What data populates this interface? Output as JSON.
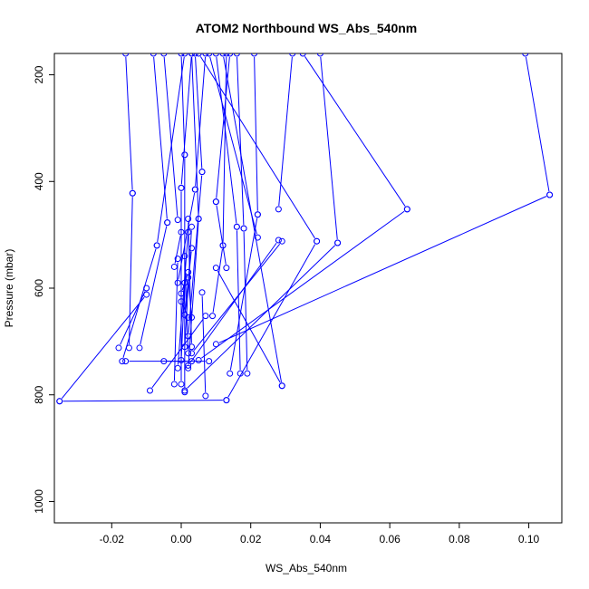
{
  "chart_data": {
    "type": "line",
    "title": "ATOM2 Northbound WS_Abs_540nm",
    "xlabel": "WS_Abs_540nm",
    "ylabel": "Pressure (mbar)",
    "xlim": [
      -0.0365,
      0.1095
    ],
    "ylim": [
      1040,
      160
    ],
    "y_inverted": true,
    "x_ticks": [
      -0.02,
      0.0,
      0.02,
      0.04,
      0.06,
      0.08,
      0.1
    ],
    "x_tick_labels": [
      "-0.02",
      "0.00",
      "0.02",
      "0.04",
      "0.06",
      "0.08",
      "0.10"
    ],
    "y_ticks": [
      200,
      400,
      600,
      800,
      1000
    ],
    "y_tick_labels": [
      "200",
      "400",
      "600",
      "800",
      "1000"
    ],
    "grid": false,
    "legend": "none",
    "series_color": "#0000ff",
    "marker": "open-circle",
    "series": [
      {
        "x": [
          0.106,
          0.099
        ],
        "y": [
          425,
          160
        ]
      },
      {
        "x": [
          0.065,
          0.035
        ],
        "y": [
          452,
          160
        ]
      },
      {
        "x": [
          0.045,
          0.04
        ],
        "y": [
          515,
          160
        ]
      },
      {
        "x": [
          0.039,
          0.005
        ],
        "y": [
          512,
          160
        ]
      },
      {
        "x": [
          0.028,
          0.032
        ],
        "y": [
          452,
          160
        ]
      },
      {
        "x": [
          0.029,
          0.012
        ],
        "y": [
          783,
          160
        ]
      },
      {
        "x": [
          0.022,
          0.021
        ],
        "y": [
          462,
          160
        ]
      },
      {
        "x": [
          0.022,
          0.008
        ],
        "y": [
          505,
          160
        ]
      },
      {
        "x": [
          0.016,
          0.01
        ],
        "y": [
          485,
          160
        ]
      },
      {
        "x": [
          0.018,
          0.016
        ],
        "y": [
          488,
          160
        ]
      },
      {
        "x": [
          0.01,
          0.014
        ],
        "y": [
          438,
          160
        ]
      },
      {
        "x": [
          0.012,
          0.013
        ],
        "y": [
          520,
          160
        ]
      },
      {
        "x": [
          0.006,
          0.004
        ],
        "y": [
          382,
          160
        ]
      },
      {
        "x": [
          0.005,
          0.003
        ],
        "y": [
          470,
          160
        ]
      },
      {
        "x": [
          -0.014,
          -0.016
        ],
        "y": [
          422,
          160
        ]
      },
      {
        "x": [
          -0.004,
          -0.008
        ],
        "y": [
          477,
          160
        ]
      },
      {
        "x": [
          -0.007,
          0.001
        ],
        "y": [
          520,
          160
        ]
      },
      {
        "x": [
          0.001,
          0.0
        ],
        "y": [
          350,
          160
        ]
      },
      {
        "x": [
          0.0,
          0.003
        ],
        "y": [
          412,
          160
        ]
      },
      {
        "x": [
          0.004,
          0.007
        ],
        "y": [
          415,
          160
        ]
      },
      {
        "x": [
          -0.001,
          -0.005
        ],
        "y": [
          472,
          160
        ]
      },
      {
        "x": [
          0.106,
          0.01
        ],
        "y": [
          425,
          705
        ]
      },
      {
        "x": [
          0.065,
          0.005
        ],
        "y": [
          452,
          735
        ]
      },
      {
        "x": [
          0.045,
          0.001
        ],
        "y": [
          515,
          792
        ]
      },
      {
        "x": [
          0.039,
          0.013
        ],
        "y": [
          512,
          810
        ]
      },
      {
        "x": [
          0.029,
          0.003
        ],
        "y": [
          512,
          722
        ]
      },
      {
        "x": [
          0.028,
          0.002
        ],
        "y": [
          510,
          745
        ]
      },
      {
        "x": [
          -0.035,
          -0.01
        ],
        "y": [
          812,
          612
        ]
      },
      {
        "x": [
          -0.035,
          0.013
        ],
        "y": [
          812,
          810
        ]
      },
      {
        "x": [
          -0.018,
          -0.01
        ],
        "y": [
          712,
          600
        ]
      },
      {
        "x": [
          -0.017,
          -0.007
        ],
        "y": [
          737,
          520
        ]
      },
      {
        "x": [
          -0.016,
          0.008
        ],
        "y": [
          737,
          737
        ]
      },
      {
        "x": [
          -0.015,
          -0.014
        ],
        "y": [
          712,
          422
        ]
      },
      {
        "x": [
          -0.012,
          -0.004
        ],
        "y": [
          712,
          477
        ]
      },
      {
        "x": [
          -0.009,
          0.007
        ],
        "y": [
          792,
          652
        ]
      },
      {
        "x": [
          0.014,
          0.022
        ],
        "y": [
          760,
          462
        ]
      },
      {
        "x": [
          0.017,
          0.016
        ],
        "y": [
          760,
          485
        ]
      },
      {
        "x": [
          0.019,
          0.018
        ],
        "y": [
          760,
          488
        ]
      },
      {
        "x": [
          0.029,
          0.01
        ],
        "y": [
          783,
          562
        ]
      },
      {
        "x": [
          0.013,
          0.01
        ],
        "y": [
          562,
          438
        ]
      },
      {
        "x": [
          0.007,
          0.006
        ],
        "y": [
          802,
          608
        ]
      },
      {
        "x": [
          0.009,
          0.012
        ],
        "y": [
          652,
          520
        ]
      },
      {
        "x": [
          0.002,
          0.005
        ],
        "y": [
          750,
          470
        ]
      },
      {
        "x": [
          0.001,
          0.001
        ],
        "y": [
          795,
          350
        ]
      },
      {
        "x": [
          0.0,
          0.0
        ],
        "y": [
          780,
          412
        ]
      },
      {
        "x": [
          -0.002,
          -0.001
        ],
        "y": [
          780,
          545
        ]
      },
      {
        "x": [
          -0.001,
          0.002
        ],
        "y": [
          750,
          495
        ]
      },
      {
        "x": [
          0.003,
          0.002
        ],
        "y": [
          710,
          470
        ]
      },
      {
        "x": [
          0.002,
          0.006
        ],
        "y": [
          690,
          382
        ]
      },
      {
        "x": [
          0.001,
          0.003
        ],
        "y": [
          650,
          525
        ]
      },
      {
        "x": [
          -0.001,
          0.004
        ],
        "y": [
          590,
          415
        ]
      },
      {
        "x": [
          0.0,
          0.002
        ],
        "y": [
          610,
          570
        ]
      },
      {
        "x": [
          -0.002,
          0.0
        ],
        "y": [
          560,
          495
        ]
      },
      {
        "x": [
          0.003,
          0.002
        ],
        "y": [
          655,
          580
        ]
      },
      {
        "x": [
          0.001,
          0.003
        ],
        "y": [
          710,
          485
        ]
      },
      {
        "x": [
          0.0,
          0.001
        ],
        "y": [
          735,
          590
        ]
      },
      {
        "x": [
          0.002,
          0.001
        ],
        "y": [
          722,
          540
        ]
      },
      {
        "x": [
          0.0,
          0.002
        ],
        "y": [
          625,
          655
        ]
      },
      {
        "x": [
          -0.005,
          0.003
        ],
        "y": [
          737,
          737
        ]
      }
    ]
  }
}
